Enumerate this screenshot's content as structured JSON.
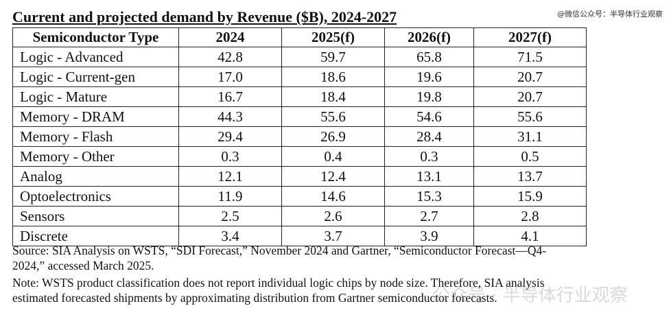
{
  "title": "Current and projected demand by Revenue ($B), 2024-2027",
  "watermark_top": "@微信公众号：半导体行业观察",
  "watermark_bottom": "公众号 · 半导体行业观察",
  "table": {
    "headers": [
      "Semiconductor Type",
      "2024",
      "2025(f)",
      "2026(f)",
      "2027(f)"
    ],
    "rows": [
      [
        "Logic - Advanced",
        "42.8",
        "59.7",
        "65.8",
        "71.5"
      ],
      [
        "Logic - Current-gen",
        "17.0",
        "18.6",
        "19.6",
        "20.7"
      ],
      [
        "Logic - Mature",
        "16.7",
        "18.4",
        "19.8",
        "20.7"
      ],
      [
        "Memory - DRAM",
        "44.3",
        "55.6",
        "54.6",
        "55.6"
      ],
      [
        "Memory - Flash",
        "29.4",
        "26.9",
        "28.4",
        "31.1"
      ],
      [
        "Memory - Other",
        "0.3",
        "0.4",
        "0.3",
        "0.5"
      ],
      [
        "Analog",
        "12.1",
        "12.4",
        "13.1",
        "13.7"
      ],
      [
        "Optoelectronics",
        "11.9",
        "14.6",
        "15.3",
        "15.9"
      ],
      [
        "Sensors",
        "2.5",
        "2.6",
        "2.7",
        "2.8"
      ],
      [
        "Discrete",
        "3.4",
        "3.7",
        "3.9",
        "4.1"
      ]
    ]
  },
  "source_lines": [
    "Source: SIA Analysis on WSTS, “SDI Forecast,” November 2024 and Gartner, “Semiconductor Forecast—Q4-",
    "2024,” accessed March 2025."
  ],
  "note_lines": [
    "Note: WSTS product classification does not report individual logic chips by node size. Therefore, SIA analysis",
    "estimated forecasted shipments by approximating distribution from Gartner semiconductor forecasts."
  ]
}
